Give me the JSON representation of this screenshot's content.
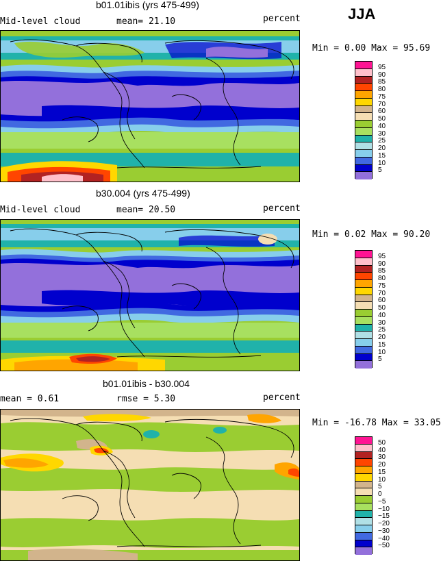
{
  "season": "JJA",
  "panels": [
    {
      "title": "b01.01ibis (yrs 475-499)",
      "left": "Mid-level cloud",
      "center": "mean=  21.10",
      "right": "percent",
      "minmax": "Min =   0.00 Max =  95.69",
      "legend": {
        "labels": [
          "95",
          "90",
          "85",
          "80",
          "75",
          "70",
          "60",
          "50",
          "40",
          "30",
          "25",
          "20",
          "15",
          "10",
          "5"
        ],
        "colors": [
          "#ff1493",
          "#ffc0cb",
          "#b22222",
          "#ff4500",
          "#ffa500",
          "#ffd700",
          "#d2b48c",
          "#f5deb3",
          "#9acd32",
          "#a8e060",
          "#20b2aa",
          "#b0e0e6",
          "#87ceeb",
          "#4169e1",
          "#0000cd",
          "#9370db"
        ]
      }
    },
    {
      "title": "b30.004 (yrs 475-499)",
      "left": "Mid-level cloud",
      "center": "mean=  20.50",
      "right": "percent",
      "minmax": "Min =   0.02 Max =  90.20",
      "legend": {
        "labels": [
          "95",
          "90",
          "85",
          "80",
          "75",
          "70",
          "60",
          "50",
          "40",
          "30",
          "25",
          "20",
          "15",
          "10",
          "5"
        ],
        "colors": [
          "#ff1493",
          "#ffc0cb",
          "#b22222",
          "#ff4500",
          "#ffa500",
          "#ffd700",
          "#d2b48c",
          "#f5deb3",
          "#9acd32",
          "#a8e060",
          "#20b2aa",
          "#b0e0e6",
          "#87ceeb",
          "#4169e1",
          "#0000cd",
          "#9370db"
        ]
      }
    },
    {
      "title": "b01.01ibis - b30.004",
      "left": "mean =   0.61",
      "center": "rmse =   5.30",
      "right": "percent",
      "minmax": "Min = -16.78 Max =  33.05",
      "legend": {
        "labels": [
          "50",
          "40",
          "30",
          "20",
          "15",
          "10",
          "5",
          "0",
          "−5",
          "−10",
          "−15",
          "−20",
          "−30",
          "−40",
          "−50"
        ],
        "colors": [
          "#ff1493",
          "#ffc0cb",
          "#b22222",
          "#ff4500",
          "#ffa500",
          "#ffd700",
          "#d2b48c",
          "#f5deb3",
          "#9acd32",
          "#a8e060",
          "#20b2aa",
          "#b0e0e6",
          "#87ceeb",
          "#4169e1",
          "#0000cd",
          "#9370db"
        ]
      }
    }
  ]
}
